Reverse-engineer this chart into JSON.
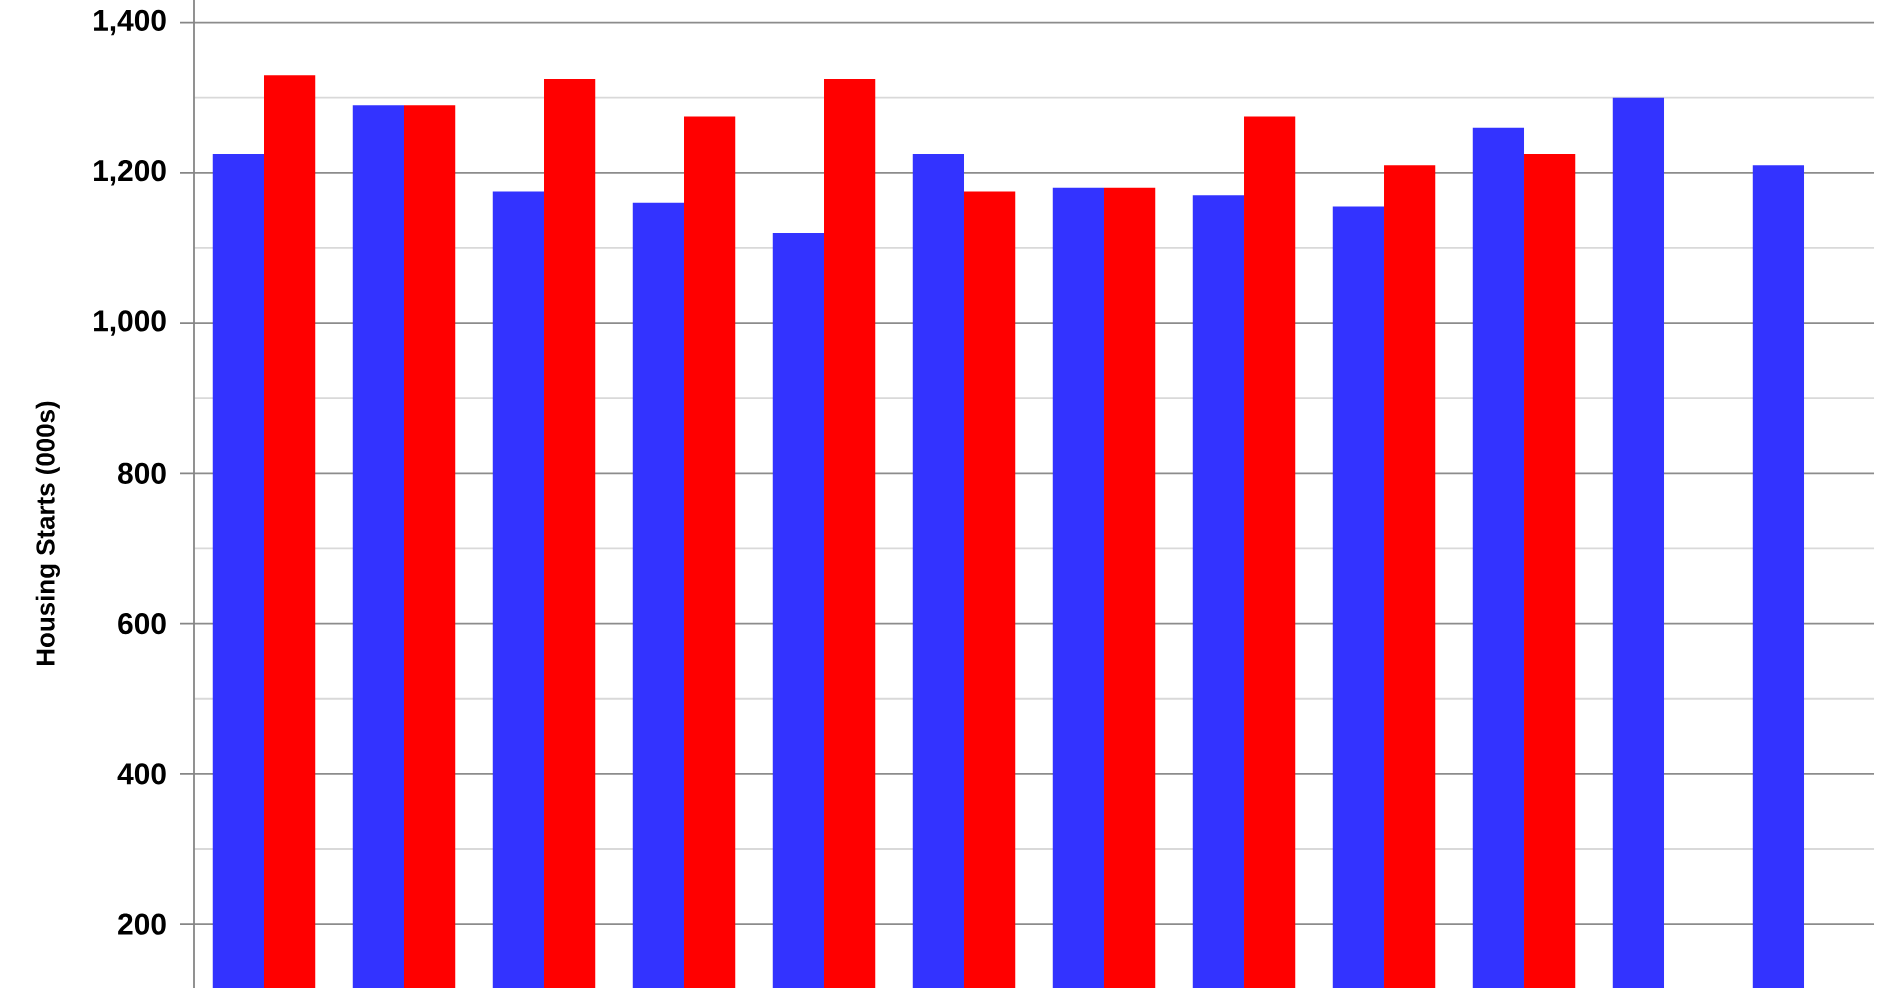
{
  "chart_data": {
    "type": "bar",
    "ylabel": "Housing Starts (000s)",
    "categories": [
      null,
      null,
      null,
      null,
      null,
      null,
      null,
      null,
      null,
      null,
      null,
      null
    ],
    "series": [
      {
        "color": "#3333ff",
        "values": [
          1225,
          1290,
          1175,
          1160,
          1120,
          1225,
          1180,
          1170,
          1155,
          1260,
          1300,
          1210
        ]
      },
      {
        "color": "#ff0000",
        "values": [
          1330,
          1290,
          1325,
          1275,
          1325,
          1175,
          1180,
          1275,
          1210,
          1225,
          null,
          null
        ]
      }
    ],
    "ylim": [
      115,
      1430
    ],
    "yticks": [
      200,
      {
        "value": 300,
        "label": null
      },
      400,
      {
        "value": 500,
        "label": null
      },
      600,
      {
        "value": 700,
        "label": null
      },
      800,
      {
        "value": 900,
        "label": null
      },
      {
        "value": 1000,
        "label": "1,000"
      },
      {
        "value": 1100,
        "label": null
      },
      {
        "value": 1200,
        "label": "1,200"
      },
      {
        "value": 1300,
        "label": null
      },
      {
        "value": 1400,
        "label": "1,400"
      }
    ],
    "grid": true,
    "tick_labels": "y"
  }
}
